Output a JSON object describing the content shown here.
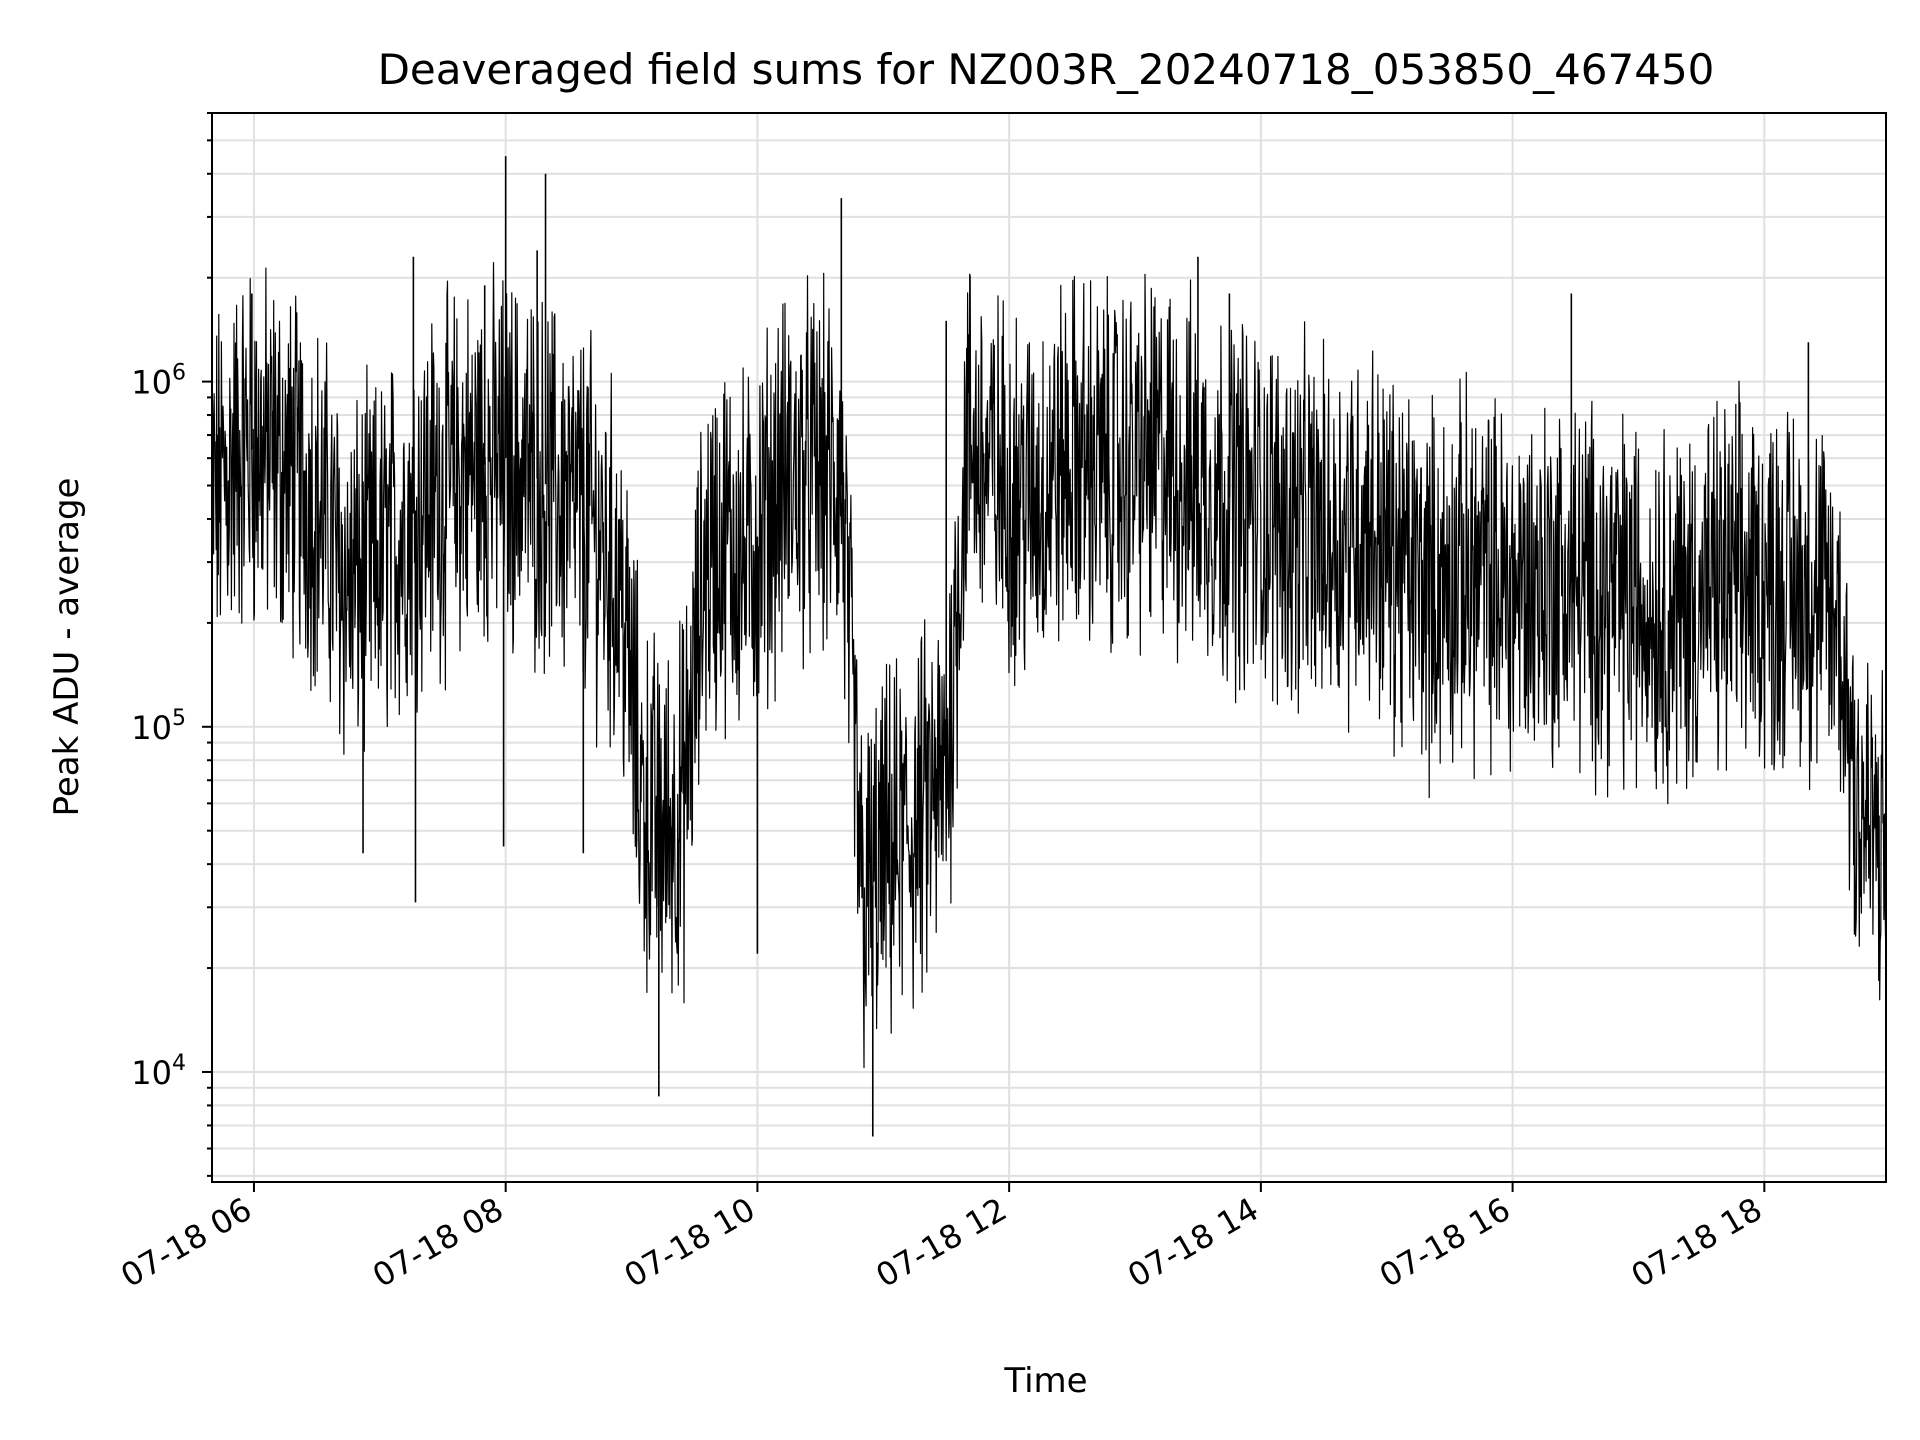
{
  "chart_data": {
    "type": "line",
    "title": "Deaveraged field sums for NZ003R_20240718_053850_467450",
    "xlabel": "Time",
    "ylabel": "Peak ADU - average",
    "yscale": "log",
    "ylim": [
      4800,
      6000000
    ],
    "xlim": [
      "2024-07-18 05:40",
      "2024-07-18 18:58"
    ],
    "x_ticks": [
      {
        "time": "2024-07-18 06:00",
        "label": "07-18 06"
      },
      {
        "time": "2024-07-18 08:00",
        "label": "07-18 08"
      },
      {
        "time": "2024-07-18 10:00",
        "label": "07-18 10"
      },
      {
        "time": "2024-07-18 12:00",
        "label": "07-18 12"
      },
      {
        "time": "2024-07-18 14:00",
        "label": "07-18 14"
      },
      {
        "time": "2024-07-18 16:00",
        "label": "07-18 16"
      },
      {
        "time": "2024-07-18 18:00",
        "label": "07-18 18"
      }
    ],
    "y_ticks": [
      {
        "value": 10000,
        "base": "10",
        "exp": "4"
      },
      {
        "value": 100000,
        "base": "10",
        "exp": "5"
      },
      {
        "value": 1000000,
        "base": "10",
        "exp": "6"
      }
    ],
    "grid": true,
    "line_color": "#000000",
    "series": [
      {
        "x": [
          "2024-07-18 05:40",
          "2024-07-18 05:55",
          "2024-07-18 06:10",
          "2024-07-18 06:30",
          "2024-07-18 06:45",
          "2024-07-18 07:00",
          "2024-07-18 07:20",
          "2024-07-18 07:40",
          "2024-07-18 08:00",
          "2024-07-18 08:20",
          "2024-07-18 08:40",
          "2024-07-18 08:55",
          "2024-07-18 09:05",
          "2024-07-18 09:15",
          "2024-07-18 09:25",
          "2024-07-18 09:35",
          "2024-07-18 09:45",
          "2024-07-18 09:55",
          "2024-07-18 10:10",
          "2024-07-18 10:25",
          "2024-07-18 10:40",
          "2024-07-18 10:50",
          "2024-07-18 11:00",
          "2024-07-18 11:15",
          "2024-07-18 11:30",
          "2024-07-18 11:40",
          "2024-07-18 11:50",
          "2024-07-18 12:10",
          "2024-07-18 12:30",
          "2024-07-18 12:50",
          "2024-07-18 13:10",
          "2024-07-18 13:30",
          "2024-07-18 13:50",
          "2024-07-18 14:10",
          "2024-07-18 14:30",
          "2024-07-18 14:50",
          "2024-07-18 15:05",
          "2024-07-18 15:20",
          "2024-07-18 15:40",
          "2024-07-18 16:00",
          "2024-07-18 16:20",
          "2024-07-18 16:40",
          "2024-07-18 17:00",
          "2024-07-18 17:20",
          "2024-07-18 17:40",
          "2024-07-18 18:00",
          "2024-07-18 18:20",
          "2024-07-18 18:35",
          "2024-07-18 18:45",
          "2024-07-18 18:58"
        ],
        "y": [
          450000,
          650000,
          600000,
          450000,
          250000,
          300000,
          450000,
          550000,
          600000,
          500000,
          400000,
          250000,
          60000,
          50000,
          60000,
          300000,
          350000,
          300000,
          500000,
          550000,
          500000,
          30000,
          40000,
          50000,
          70000,
          700000,
          550000,
          450000,
          600000,
          550000,
          600000,
          500000,
          450000,
          400000,
          350000,
          400000,
          300000,
          250000,
          280000,
          250000,
          270000,
          250000,
          230000,
          220000,
          250000,
          260000,
          250000,
          200000,
          60000,
          40000
        ]
      }
    ],
    "spikes": [
      {
        "x": "2024-07-18 05:59",
        "y": 1800000
      },
      {
        "x": "2024-07-18 06:52",
        "y": 43000
      },
      {
        "x": "2024-07-18 07:16",
        "y": 2300000
      },
      {
        "x": "2024-07-18 07:17",
        "y": 31000
      },
      {
        "x": "2024-07-18 07:50",
        "y": 1900000
      },
      {
        "x": "2024-07-18 08:00",
        "y": 4500000
      },
      {
        "x": "2024-07-18 07:59",
        "y": 45000
      },
      {
        "x": "2024-07-18 08:19",
        "y": 4000000
      },
      {
        "x": "2024-07-18 08:15",
        "y": 2400000
      },
      {
        "x": "2024-07-18 08:37",
        "y": 43000
      },
      {
        "x": "2024-07-18 09:13",
        "y": 8500
      },
      {
        "x": "2024-07-18 10:00",
        "y": 22000
      },
      {
        "x": "2024-07-18 10:40",
        "y": 3400000
      },
      {
        "x": "2024-07-18 10:55",
        "y": 6500
      },
      {
        "x": "2024-07-18 11:30",
        "y": 1500000
      },
      {
        "x": "2024-07-18 13:30",
        "y": 2300000
      },
      {
        "x": "2024-07-18 13:45",
        "y": 1800000
      },
      {
        "x": "2024-07-18 16:28",
        "y": 1800000
      },
      {
        "x": "2024-07-18 18:21",
        "y": 1300000
      },
      {
        "x": "2024-07-18 18:43",
        "y": 25000
      }
    ]
  }
}
